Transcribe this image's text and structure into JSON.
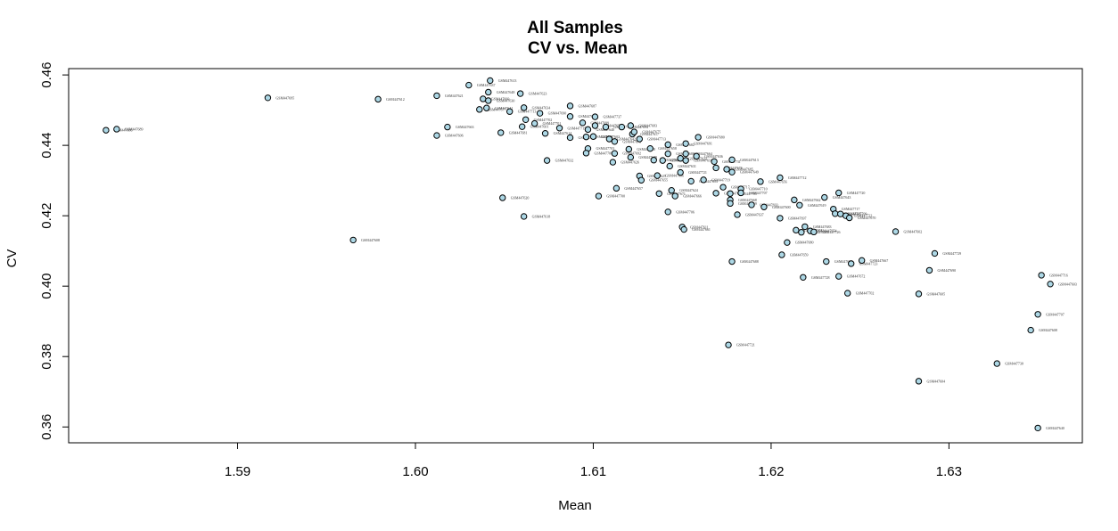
{
  "chart_data": {
    "type": "scatter",
    "title": "All Samples",
    "subtitle": "CV vs. Mean",
    "xlabel": "Mean",
    "ylabel": "CV",
    "xlim": [
      1.5805,
      1.6375
    ],
    "ylim": [
      0.3555,
      0.4618
    ],
    "xticks": [
      1.59,
      1.6,
      1.61,
      1.62,
      1.63
    ],
    "xtick_labels": [
      "1.59",
      "1.60",
      "1.61",
      "1.62",
      "1.63"
    ],
    "yticks": [
      0.36,
      0.38,
      0.4,
      0.42,
      0.44,
      0.46
    ],
    "ytick_labels": [
      "0.36",
      "0.38",
      "0.40",
      "0.42",
      "0.44",
      "0.46"
    ],
    "grid": false,
    "marker_fill": "#add8e6",
    "marker_stroke": "#000000",
    "points": [
      {
        "x": 1.5826,
        "y": 0.4443,
        "label": "GSM447686"
      },
      {
        "x": 1.5832,
        "y": 0.4446,
        "label": "GSM447689"
      },
      {
        "x": 1.5917,
        "y": 0.4535,
        "label": "GSM447695"
      },
      {
        "x": 1.5979,
        "y": 0.4531,
        "label": "GSM447612"
      },
      {
        "x": 1.5965,
        "y": 0.4131,
        "label": "GSM447608"
      },
      {
        "x": 1.6012,
        "y": 0.4541,
        "label": "GSM447621"
      },
      {
        "x": 1.6018,
        "y": 0.4452,
        "label": "GSM447663"
      },
      {
        "x": 1.6012,
        "y": 0.4428,
        "label": "GSM447606"
      },
      {
        "x": 1.603,
        "y": 0.4571,
        "label": "GSM447637"
      },
      {
        "x": 1.6042,
        "y": 0.4584,
        "label": "GSM447613"
      },
      {
        "x": 1.6041,
        "y": 0.4551,
        "label": "GSM447648"
      },
      {
        "x": 1.6038,
        "y": 0.4532,
        "label": "GSM447660"
      },
      {
        "x": 1.6041,
        "y": 0.4527,
        "label": "GSM447630"
      },
      {
        "x": 1.604,
        "y": 0.4506,
        "label": "GSM447641"
      },
      {
        "x": 1.6036,
        "y": 0.4502,
        "label": "GSM447677"
      },
      {
        "x": 1.6048,
        "y": 0.4436,
        "label": "GSM447681"
      },
      {
        "x": 1.6049,
        "y": 0.4251,
        "label": "GSM447620"
      },
      {
        "x": 1.6053,
        "y": 0.4496,
        "label": "GSM447713"
      },
      {
        "x": 1.6059,
        "y": 0.4547,
        "label": "GSM447623"
      },
      {
        "x": 1.6061,
        "y": 0.4507,
        "label": "GSM447634"
      },
      {
        "x": 1.6062,
        "y": 0.4473,
        "label": "GSM447702"
      },
      {
        "x": 1.6061,
        "y": 0.4198,
        "label": "GSM447618"
      },
      {
        "x": 1.606,
        "y": 0.4453,
        "label": "GSM447601"
      },
      {
        "x": 1.6067,
        "y": 0.4462,
        "label": "GSM447701"
      },
      {
        "x": 1.607,
        "y": 0.4491,
        "label": "GSM447690"
      },
      {
        "x": 1.6073,
        "y": 0.4434,
        "label": "GSM447614"
      },
      {
        "x": 1.6074,
        "y": 0.4357,
        "label": "GSM447632"
      },
      {
        "x": 1.6081,
        "y": 0.4449,
        "label": "GSM447715"
      },
      {
        "x": 1.6087,
        "y": 0.4512,
        "label": "GSM447687"
      },
      {
        "x": 1.6087,
        "y": 0.4482,
        "label": "GSM447698"
      },
      {
        "x": 1.6087,
        "y": 0.4422,
        "label": "GSM447635"
      },
      {
        "x": 1.6094,
        "y": 0.4464,
        "label": "GSM447699"
      },
      {
        "x": 1.6097,
        "y": 0.4445,
        "label": "GSM447640"
      },
      {
        "x": 1.6096,
        "y": 0.4424,
        "label": "GSM447639"
      },
      {
        "x": 1.6097,
        "y": 0.4391,
        "label": "GSM447703"
      },
      {
        "x": 1.6096,
        "y": 0.4378,
        "label": "GSM447708"
      },
      {
        "x": 1.6101,
        "y": 0.4481,
        "label": "GSM447737"
      },
      {
        "x": 1.6101,
        "y": 0.4456,
        "label": "GSM447652"
      },
      {
        "x": 1.61,
        "y": 0.4425,
        "label": "GSM447603"
      },
      {
        "x": 1.6103,
        "y": 0.4256,
        "label": "GSM447700"
      },
      {
        "x": 1.6107,
        "y": 0.4452,
        "label": "GSM447704"
      },
      {
        "x": 1.6109,
        "y": 0.4418,
        "label": "GSM447642"
      },
      {
        "x": 1.6112,
        "y": 0.4411,
        "label": "GSM447673"
      },
      {
        "x": 1.6112,
        "y": 0.4377,
        "label": "GSM447692"
      },
      {
        "x": 1.6111,
        "y": 0.4352,
        "label": "GSM447626"
      },
      {
        "x": 1.6113,
        "y": 0.4278,
        "label": "GSM447657"
      },
      {
        "x": 1.6116,
        "y": 0.4452,
        "label": "GSM447694"
      },
      {
        "x": 1.6121,
        "y": 0.4456,
        "label": "GSM447683"
      },
      {
        "x": 1.6122,
        "y": 0.4432,
        "label": "GSM447617"
      },
      {
        "x": 1.6123,
        "y": 0.4438,
        "label": "GSM447675"
      },
      {
        "x": 1.612,
        "y": 0.4389,
        "label": "GSM447628"
      },
      {
        "x": 1.6121,
        "y": 0.4366,
        "label": "GSM447679"
      },
      {
        "x": 1.6126,
        "y": 0.4418,
        "label": "GSM447713"
      },
      {
        "x": 1.6126,
        "y": 0.4313,
        "label": "GSM447625"
      },
      {
        "x": 1.6127,
        "y": 0.4301,
        "label": "GSM447655"
      },
      {
        "x": 1.6132,
        "y": 0.4391,
        "label": "GSM447658"
      },
      {
        "x": 1.6134,
        "y": 0.4358,
        "label": "GSM447662"
      },
      {
        "x": 1.6136,
        "y": 0.4314,
        "label": "GSM447666"
      },
      {
        "x": 1.6137,
        "y": 0.4263,
        "label": "GSM447671"
      },
      {
        "x": 1.6139,
        "y": 0.4357,
        "label": "GSM447711"
      },
      {
        "x": 1.6142,
        "y": 0.4402,
        "label": "GSM447682"
      },
      {
        "x": 1.6142,
        "y": 0.4376,
        "label": "GSM447686"
      },
      {
        "x": 1.6143,
        "y": 0.4341,
        "label": "GSM447631"
      },
      {
        "x": 1.6142,
        "y": 0.4211,
        "label": "GSM447706"
      },
      {
        "x": 1.6144,
        "y": 0.4272,
        "label": "GSM447624"
      },
      {
        "x": 1.6146,
        "y": 0.4256,
        "label": "GSM447666"
      },
      {
        "x": 1.6149,
        "y": 0.4363,
        "label": "GSM447622"
      },
      {
        "x": 1.6149,
        "y": 0.4323,
        "label": "GSM447721"
      },
      {
        "x": 1.615,
        "y": 0.4168,
        "label": "GSM447611"
      },
      {
        "x": 1.6151,
        "y": 0.4161,
        "label": "GSM447661"
      },
      {
        "x": 1.6152,
        "y": 0.4405,
        "label": "GSM447691"
      },
      {
        "x": 1.6152,
        "y": 0.4376,
        "label": "GSM447664"
      },
      {
        "x": 1.6152,
        "y": 0.4357,
        "label": "GSM447616"
      },
      {
        "x": 1.6155,
        "y": 0.4298,
        "label": "GSM447653"
      },
      {
        "x": 1.6158,
        "y": 0.4369,
        "label": "GSM447636"
      },
      {
        "x": 1.6159,
        "y": 0.4423,
        "label": "GSM447680"
      },
      {
        "x": 1.6162,
        "y": 0.4302,
        "label": "GSM447719"
      },
      {
        "x": 1.6168,
        "y": 0.4354,
        "label": "GSM447731"
      },
      {
        "x": 1.6169,
        "y": 0.4336,
        "label": "GSM447676"
      },
      {
        "x": 1.6169,
        "y": 0.4264,
        "label": "GSM447665"
      },
      {
        "x": 1.6173,
        "y": 0.4281,
        "label": "GSM447717"
      },
      {
        "x": 1.6175,
        "y": 0.4332,
        "label": "GSM447685"
      },
      {
        "x": 1.6177,
        "y": 0.4263,
        "label": "GSM447705"
      },
      {
        "x": 1.6178,
        "y": 0.4359,
        "label": "GSM447613"
      },
      {
        "x": 1.6178,
        "y": 0.4324,
        "label": "GSM447649"
      },
      {
        "x": 1.6177,
        "y": 0.4245,
        "label": "GSM447668"
      },
      {
        "x": 1.6177,
        "y": 0.4235,
        "label": "GSM447669"
      },
      {
        "x": 1.6178,
        "y": 0.407,
        "label": "GSM447688"
      },
      {
        "x": 1.6176,
        "y": 0.3833,
        "label": "GSM447721"
      },
      {
        "x": 1.6181,
        "y": 0.4203,
        "label": "GSM447637"
      },
      {
        "x": 1.6183,
        "y": 0.4276,
        "label": "GSM447710"
      },
      {
        "x": 1.6183,
        "y": 0.4265,
        "label": "GSM447707"
      },
      {
        "x": 1.6189,
        "y": 0.4231,
        "label": "GSM447693"
      },
      {
        "x": 1.6194,
        "y": 0.4297,
        "label": "GSM447656"
      },
      {
        "x": 1.6196,
        "y": 0.4225,
        "label": "GSM447600"
      },
      {
        "x": 1.6205,
        "y": 0.4308,
        "label": "GSM447712"
      },
      {
        "x": 1.6205,
        "y": 0.4193,
        "label": "GSM447697"
      },
      {
        "x": 1.6206,
        "y": 0.4089,
        "label": "GSM447659"
      },
      {
        "x": 1.6209,
        "y": 0.4124,
        "label": "GSM447680"
      },
      {
        "x": 1.6213,
        "y": 0.4245,
        "label": "GSM447662"
      },
      {
        "x": 1.6214,
        "y": 0.4159,
        "label": "GSM447661"
      },
      {
        "x": 1.6216,
        "y": 0.423,
        "label": "GSM447619"
      },
      {
        "x": 1.6217,
        "y": 0.4153,
        "label": "GSM447727"
      },
      {
        "x": 1.6219,
        "y": 0.4169,
        "label": "GSM447683"
      },
      {
        "x": 1.6218,
        "y": 0.4025,
        "label": "GSM447728"
      },
      {
        "x": 1.6222,
        "y": 0.4157,
        "label": "GSM447654"
      },
      {
        "x": 1.6224,
        "y": 0.4154,
        "label": "GSM447726"
      },
      {
        "x": 1.623,
        "y": 0.4252,
        "label": "GSM447643"
      },
      {
        "x": 1.6231,
        "y": 0.407,
        "label": "GSM447696"
      },
      {
        "x": 1.6235,
        "y": 0.4219,
        "label": "GSM447717"
      },
      {
        "x": 1.6236,
        "y": 0.4206,
        "label": "GSM447715"
      },
      {
        "x": 1.6238,
        "y": 0.4265,
        "label": "GSM447720"
      },
      {
        "x": 1.6238,
        "y": 0.4028,
        "label": "GSM447672"
      },
      {
        "x": 1.6239,
        "y": 0.4205,
        "label": "GSM447709"
      },
      {
        "x": 1.6242,
        "y": 0.42,
        "label": "GSM447722"
      },
      {
        "x": 1.6244,
        "y": 0.4194,
        "label": "GSM447670"
      },
      {
        "x": 1.6243,
        "y": 0.398,
        "label": "GSM447702"
      },
      {
        "x": 1.6245,
        "y": 0.4064,
        "label": "GSM447723"
      },
      {
        "x": 1.6251,
        "y": 0.4073,
        "label": "GSM447667"
      },
      {
        "x": 1.627,
        "y": 0.4155,
        "label": "GSM447602"
      },
      {
        "x": 1.6283,
        "y": 0.3978,
        "label": "GSM447605"
      },
      {
        "x": 1.6283,
        "y": 0.373,
        "label": "GSM447604"
      },
      {
        "x": 1.6289,
        "y": 0.4045,
        "label": "GSM447690"
      },
      {
        "x": 1.6292,
        "y": 0.4093,
        "label": "GSM447729"
      },
      {
        "x": 1.6327,
        "y": 0.378,
        "label": "GSM447730"
      },
      {
        "x": 1.6346,
        "y": 0.3875,
        "label": "GSM447608"
      },
      {
        "x": 1.635,
        "y": 0.392,
        "label": "GSM447707"
      },
      {
        "x": 1.6352,
        "y": 0.4031,
        "label": "GSM447716"
      },
      {
        "x": 1.6357,
        "y": 0.4006,
        "label": "GSM447603"
      },
      {
        "x": 1.635,
        "y": 0.3597,
        "label": "GSM447640"
      }
    ]
  }
}
